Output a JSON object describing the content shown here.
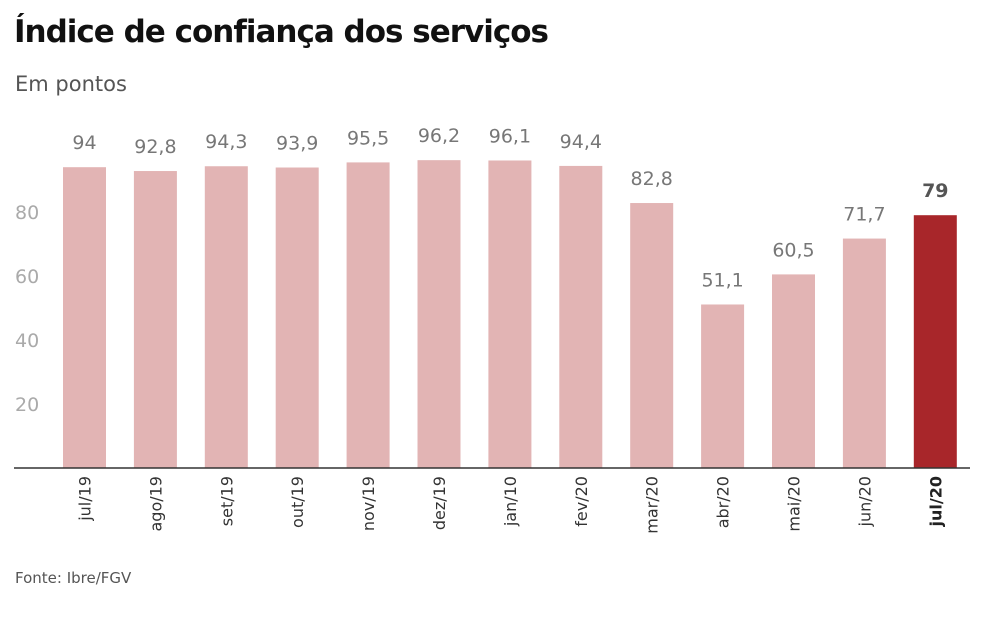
{
  "chart_data": {
    "type": "bar",
    "title": "Índice de confiança dos serviços",
    "subtitle": "Em pontos",
    "source": "Fonte: Ibre/FGV",
    "categories": [
      "jul/19",
      "ago/19",
      "set/19",
      "out/19",
      "nov/19",
      "dez/19",
      "jan/10",
      "fev/20",
      "mar/20",
      "abr/20",
      "mai/20",
      "jun/20",
      "jul/20"
    ],
    "values": [
      94,
      92.8,
      94.3,
      93.9,
      95.5,
      96.2,
      96.1,
      94.4,
      82.8,
      51.1,
      60.5,
      71.7,
      79
    ],
    "value_labels": [
      "94",
      "92,8",
      "94,3",
      "93,9",
      "95,5",
      "96,2",
      "96,1",
      "94,4",
      "82,8",
      "51,1",
      "60,5",
      "71,7",
      "79"
    ],
    "highlight_index": 12,
    "yticks": [
      20,
      40,
      60,
      80
    ],
    "ylim": [
      0,
      100
    ],
    "grid": false,
    "colors": {
      "bar": "#e2b4b4",
      "highlight": "#a8262a",
      "axis": "#333333"
    }
  }
}
